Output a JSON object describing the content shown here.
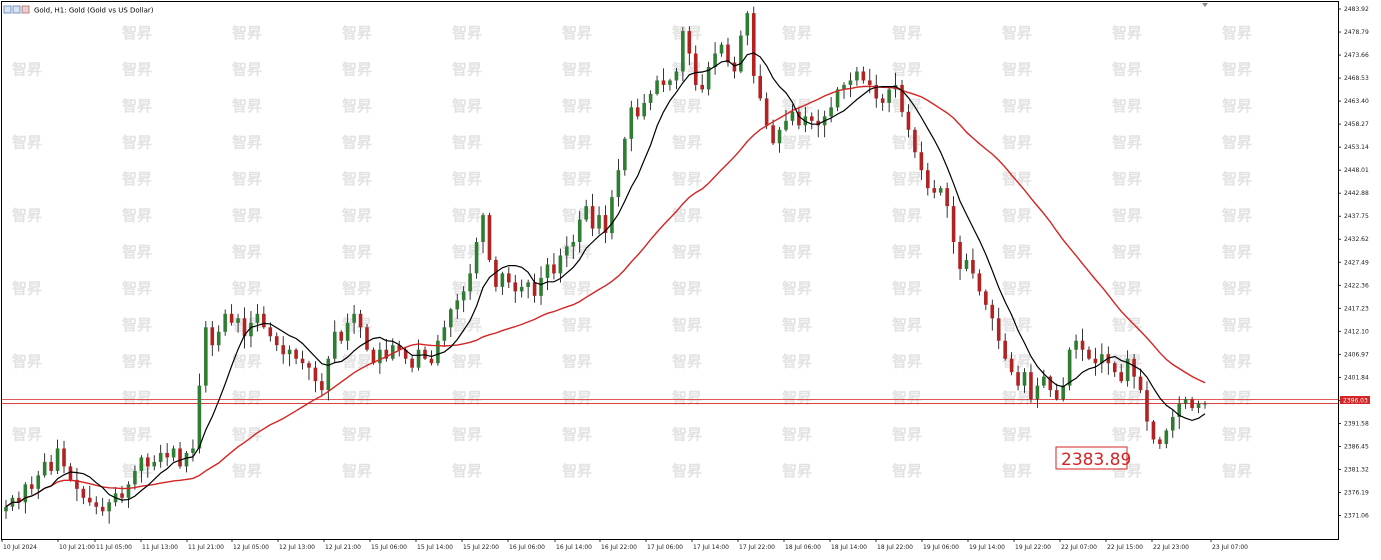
{
  "window": {
    "title": "Gold, H1:  Gold (Gold vs US Dollar)"
  },
  "colors": {
    "bull": "#2f7d32",
    "bear": "#b22222",
    "wick": "#000000",
    "ma_fast": "#000000",
    "ma_slow": "#d42424",
    "price_line": "#d42424",
    "grid": "#ffffff",
    "watermark": "#e6e6e6"
  },
  "watermark_text": "智昇",
  "price_callout": "2383.89",
  "current_price_label": "2396.03",
  "chart_data": {
    "type": "candlestick",
    "symbol": "Gold",
    "timeframe": "H1",
    "ylim": [
      2368.5,
      2485.5
    ],
    "y_ticks": [
      "2483.92",
      "2478.79",
      "2473.66",
      "2468.53",
      "2463.40",
      "2458.27",
      "2453.14",
      "2448.01",
      "2442.88",
      "2437.75",
      "2432.62",
      "2427.49",
      "2422.36",
      "2417.23",
      "2412.10",
      "2406.97",
      "2401.84",
      "2396.71",
      "2391.58",
      "2386.45",
      "2381.32",
      "2376.19",
      "2371.06"
    ],
    "x_ticks": [
      "10 Jul 2024",
      "10 Jul 21:00",
      "11 Jul 05:00",
      "11 Jul 13:00",
      "11 Jul 21:00",
      "12 Jul 05:00",
      "12 Jul 13:00",
      "12 Jul 21:00",
      "15 Jul 06:00",
      "15 Jul 14:00",
      "15 Jul 22:00",
      "16 Jul 06:00",
      "16 Jul 14:00",
      "16 Jul 22:00",
      "17 Jul 06:00",
      "17 Jul 14:00",
      "17 Jul 22:00",
      "18 Jul 06:00",
      "18 Jul 14:00",
      "18 Jul 22:00",
      "19 Jul 06:00",
      "19 Jul 14:00",
      "19 Jul 22:00",
      "22 Jul 07:00",
      "22 Jul 15:00",
      "22 Jul 23:00",
      "23 Jul 07:00"
    ],
    "horizontal_lines": [
      2396.0,
      2396.9
    ],
    "price_path": [
      2373,
      2375,
      2374,
      2378,
      2377,
      2380,
      2383,
      2381,
      2386,
      2382,
      2379,
      2377,
      2375,
      2374,
      2373,
      2372,
      2374,
      2376,
      2375,
      2378,
      2381,
      2384,
      2382,
      2383,
      2385,
      2384,
      2386,
      2382,
      2385,
      2386,
      2400,
      2413,
      2409,
      2412,
      2416,
      2414,
      2415,
      2411,
      2414,
      2416,
      2413,
      2411,
      2409,
      2407,
      2408,
      2406,
      2405,
      2404,
      2401,
      2399,
      2406,
      2412,
      2410,
      2414,
      2416,
      2413,
      2408,
      2405,
      2408,
      2406,
      2409,
      2408,
      2406,
      2404,
      2408,
      2406,
      2405,
      2410,
      2413,
      2417,
      2419,
      2421,
      2425,
      2432,
      2438,
      2428,
      2422,
      2425,
      2423,
      2421,
      2422,
      2423,
      2420,
      2424,
      2427,
      2425,
      2429,
      2431,
      2432,
      2437,
      2440,
      2435,
      2438,
      2434,
      2442,
      2448,
      2455,
      2462,
      2460,
      2463,
      2465,
      2468,
      2467,
      2468,
      2470,
      2479,
      2474,
      2467,
      2466,
      2471,
      2474,
      2476,
      2472,
      2470,
      2478,
      2483,
      2469,
      2464,
      2458,
      2454,
      2457,
      2459,
      2461,
      2458,
      2460,
      2459,
      2458,
      2460,
      2462,
      2466,
      2467,
      2468,
      2470,
      2468,
      2467,
      2464,
      2463,
      2466,
      2467,
      2461,
      2457,
      2452,
      2448,
      2444,
      2443,
      2444,
      2440,
      2432,
      2426,
      2428,
      2425,
      2421,
      2418,
      2415,
      2410,
      2406,
      2403,
      2400,
      2403,
      2397,
      2400,
      2402,
      2399,
      2397,
      2400,
      2408,
      2410,
      2408,
      2406,
      2405,
      2407,
      2405,
      2403,
      2401,
      2406,
      2402,
      2399,
      2392,
      2388,
      2387,
      2390,
      2393,
      2396,
      2397,
      2395,
      2396,
      2396
    ]
  }
}
